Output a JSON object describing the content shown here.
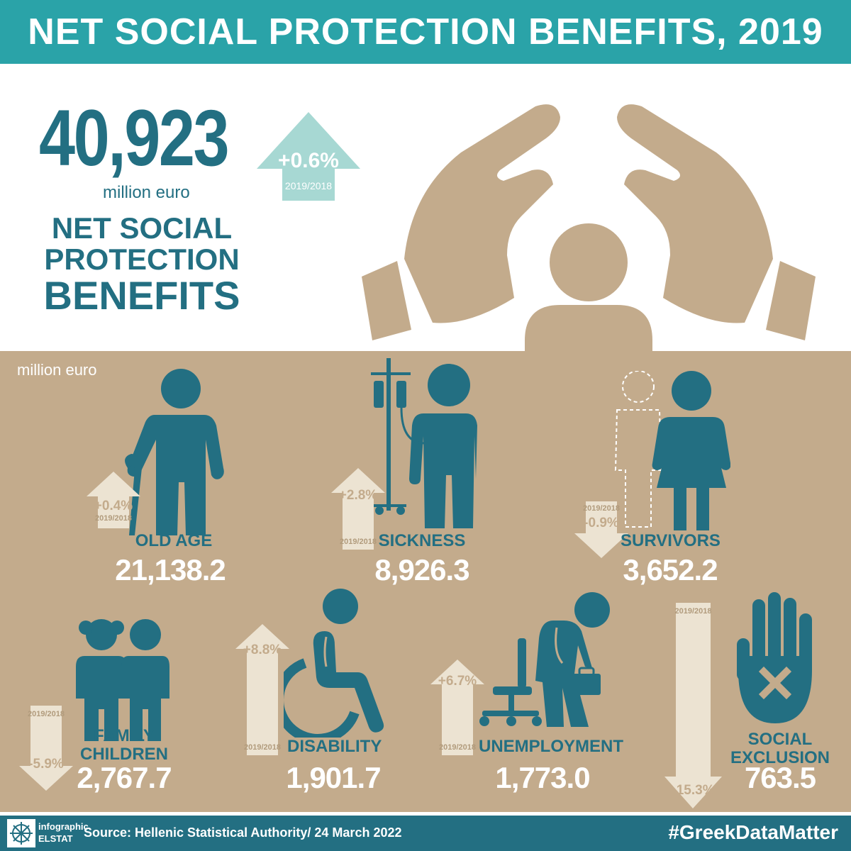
{
  "header": {
    "title": "NET SOCIAL PROTECTION BENEFITS, 2019"
  },
  "summary": {
    "total": "40,923",
    "unit": "million euro",
    "title_line1": "NET SOCIAL",
    "title_line2": "PROTECTION",
    "title_line3": "BENEFITS",
    "change": "+0.6%",
    "change_period": "2019/2018"
  },
  "breakdown": {
    "unit_label": "million euro",
    "categories": [
      {
        "label": "OLD AGE",
        "value": "21,138.2",
        "change": "+0.4%",
        "period": "2019/2018",
        "direction": "up",
        "icon": "elderly-person-icon"
      },
      {
        "label": "SICKNESS",
        "value": "8,926.3",
        "change": "+2.8%",
        "period": "2019/2018",
        "direction": "up",
        "icon": "iv-drip-patient-icon"
      },
      {
        "label": "SURVIVORS",
        "value": "3,652.2",
        "change": "-0.9%",
        "period": "2019/2018",
        "direction": "down",
        "icon": "widow-icon"
      },
      {
        "label_line1": "FAMILY",
        "label_line2": "CHILDREN",
        "value": "2,767.7",
        "change": "-5.9%",
        "period": "2019/2018",
        "direction": "down",
        "icon": "children-icon"
      },
      {
        "label": "DISABILITY",
        "value": "1,901.7",
        "change": "+8.8%",
        "period": "2019/2018",
        "direction": "up",
        "icon": "wheelchair-icon"
      },
      {
        "label": "UNEMPLOYMENT",
        "value": "1,773.0",
        "change": "+6.7%",
        "period": "2019/2018",
        "direction": "up",
        "icon": "unemployed-person-icon"
      },
      {
        "label_line1": "SOCIAL",
        "label_line2": "EXCLUSION",
        "value": "763.5",
        "change": "-15.3%",
        "period": "2019/2018",
        "direction": "down",
        "icon": "stop-hand-icon"
      }
    ]
  },
  "footer": {
    "logo_line1": "infographic",
    "logo_line2": "ELSTAT",
    "source": "Source: Hellenic Statistical Authority/ 24 March 2022",
    "hashtag": "#GreekDataMatter"
  },
  "colors": {
    "teal": "#2aa3a8",
    "dark_teal": "#236f82",
    "beige": "#c3ab8c",
    "cream": "#ece3d2",
    "light_teal": "#a7d8d3"
  }
}
